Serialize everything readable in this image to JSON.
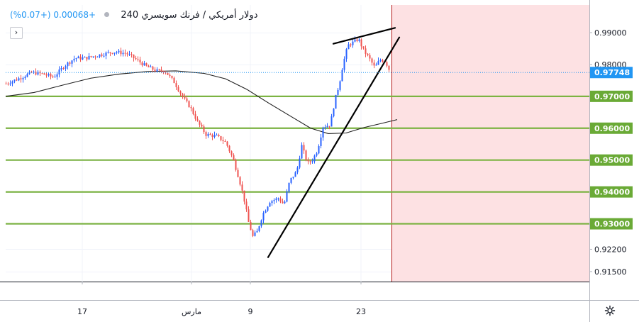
{
  "header": {
    "symbol": "دولار أمريكي / فرنك سويسري",
    "timeframe": "240",
    "change": "+0.00068 (+0.07%)",
    "collapse_icon": "›"
  },
  "chart_data": {
    "type": "candlestick",
    "y_axis": {
      "ticks": [
        "0.99000",
        "0.98000",
        "0.97000",
        "0.96000",
        "0.95000",
        "0.94000",
        "0.93000",
        "0.92200",
        "0.91500"
      ],
      "ylim": [
        0.9135,
        0.9995
      ]
    },
    "x_axis": {
      "tick_labels": [
        "17",
        "مارس",
        "9",
        "23"
      ]
    },
    "current_price": "0.97748",
    "horizontal_levels": [
      "0.97000",
      "0.96000",
      "0.95000",
      "0.94000",
      "0.93000"
    ],
    "moving_average_points": [
      {
        "x": 0,
        "y": 0.97
      },
      {
        "x": 40,
        "y": 0.9712
      },
      {
        "x": 80,
        "y": 0.9735
      },
      {
        "x": 120,
        "y": 0.9757
      },
      {
        "x": 160,
        "y": 0.977
      },
      {
        "x": 200,
        "y": 0.9778
      },
      {
        "x": 240,
        "y": 0.978
      },
      {
        "x": 280,
        "y": 0.9772
      },
      {
        "x": 310,
        "y": 0.9755
      },
      {
        "x": 340,
        "y": 0.9722
      },
      {
        "x": 370,
        "y": 0.968
      },
      {
        "x": 400,
        "y": 0.964
      },
      {
        "x": 430,
        "y": 0.96
      },
      {
        "x": 455,
        "y": 0.9583
      },
      {
        "x": 480,
        "y": 0.9585
      },
      {
        "x": 505,
        "y": 0.9602
      },
      {
        "x": 530,
        "y": 0.9615
      },
      {
        "x": 552,
        "y": 0.9627
      }
    ],
    "trendlines": [
      {
        "from": {
          "x": 378,
          "y": 0.9195
        },
        "to": {
          "x": 563,
          "y": 0.9885
        }
      },
      {
        "from": {
          "x": 470,
          "y": 0.9865
        },
        "to": {
          "x": 557,
          "y": 0.9915
        }
      }
    ],
    "price_path": [
      {
        "x": 8,
        "y": 0.974
      },
      {
        "x": 25,
        "y": 0.9755
      },
      {
        "x": 45,
        "y": 0.9775
      },
      {
        "x": 60,
        "y": 0.977
      },
      {
        "x": 75,
        "y": 0.976
      },
      {
        "x": 90,
        "y": 0.9795
      },
      {
        "x": 105,
        "y": 0.982
      },
      {
        "x": 120,
        "y": 0.982
      },
      {
        "x": 140,
        "y": 0.983
      },
      {
        "x": 160,
        "y": 0.984
      },
      {
        "x": 178,
        "y": 0.9835
      },
      {
        "x": 192,
        "y": 0.9815
      },
      {
        "x": 205,
        "y": 0.9795
      },
      {
        "x": 220,
        "y": 0.978
      },
      {
        "x": 232,
        "y": 0.978
      },
      {
        "x": 245,
        "y": 0.9745
      },
      {
        "x": 258,
        "y": 0.9695
      },
      {
        "x": 268,
        "y": 0.9665
      },
      {
        "x": 278,
        "y": 0.962
      },
      {
        "x": 290,
        "y": 0.958
      },
      {
        "x": 305,
        "y": 0.9575
      },
      {
        "x": 318,
        "y": 0.9555
      },
      {
        "x": 328,
        "y": 0.9505
      },
      {
        "x": 336,
        "y": 0.9445
      },
      {
        "x": 343,
        "y": 0.9385
      },
      {
        "x": 350,
        "y": 0.9305
      },
      {
        "x": 356,
        "y": 0.926
      },
      {
        "x": 362,
        "y": 0.9275
      },
      {
        "x": 370,
        "y": 0.933
      },
      {
        "x": 380,
        "y": 0.937
      },
      {
        "x": 392,
        "y": 0.938
      },
      {
        "x": 400,
        "y": 0.936
      },
      {
        "x": 408,
        "y": 0.9435
      },
      {
        "x": 418,
        "y": 0.9465
      },
      {
        "x": 425,
        "y": 0.9545
      },
      {
        "x": 433,
        "y": 0.949
      },
      {
        "x": 440,
        "y": 0.95
      },
      {
        "x": 447,
        "y": 0.953
      },
      {
        "x": 455,
        "y": 0.9605
      },
      {
        "x": 465,
        "y": 0.961
      },
      {
        "x": 472,
        "y": 0.969
      },
      {
        "x": 478,
        "y": 0.974
      },
      {
        "x": 483,
        "y": 0.98
      },
      {
        "x": 490,
        "y": 0.986
      },
      {
        "x": 498,
        "y": 0.987
      },
      {
        "x": 505,
        "y": 0.988
      },
      {
        "x": 512,
        "y": 0.9845
      },
      {
        "x": 520,
        "y": 0.982
      },
      {
        "x": 528,
        "y": 0.979
      },
      {
        "x": 535,
        "y": 0.9815
      },
      {
        "x": 543,
        "y": 0.981
      },
      {
        "x": 550,
        "y": 0.9775
      }
    ],
    "colors": {
      "up": "#2862ff",
      "down": "#ef5350",
      "level": "#7cb342",
      "level_label_bg": "#6aaa36",
      "price_label_bg": "#2196f3",
      "ma": "#1f1f1f",
      "trendline": "#000000",
      "future_zone": "#fde1e3",
      "future_border": "#b71c1c"
    }
  }
}
